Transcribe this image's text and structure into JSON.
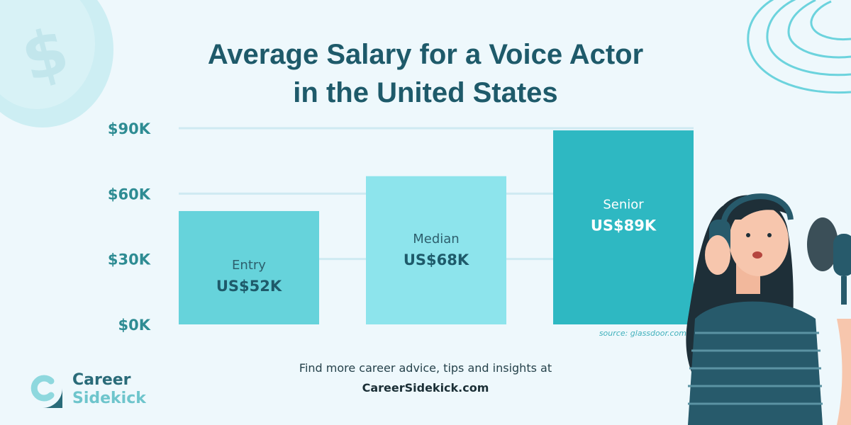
{
  "title": "Average Salary for a Voice Actor in the United States",
  "title_line1": "Average Salary for a Voice Actor",
  "title_line2": "in the United States",
  "source": "source: glassdoor.com",
  "footer": {
    "line1": "Find more career advice, tips and insights at",
    "site": "CareerSidekick.com"
  },
  "logo": {
    "word1": "Career",
    "word2": "Sidekick"
  },
  "icons": [
    "dollar-coin-icon",
    "swirl-lines-icon",
    "career-sidekick-logo-icon",
    "voice-actor-illustration"
  ],
  "colors": {
    "title": "#1e5a6a",
    "bar_entry": "#66d3db",
    "bar_median": "#8de4ec",
    "bar_senior": "#2eb8c2",
    "background": "#eef8fc"
  },
  "chart_data": {
    "type": "bar",
    "title": "Average Salary for a Voice Actor in the United States",
    "categories": [
      "Entry",
      "Median",
      "Senior"
    ],
    "values": [
      52,
      68,
      89
    ],
    "value_labels": [
      "US$52K",
      "US$68K",
      "US$89K"
    ],
    "unit": "thousand USD",
    "ylim": [
      0,
      90
    ],
    "yticks": [
      0,
      30,
      60,
      90
    ],
    "ytick_labels": [
      "$0K",
      "$30K",
      "$60K",
      "$90K"
    ],
    "grid": true,
    "legend": "none"
  }
}
